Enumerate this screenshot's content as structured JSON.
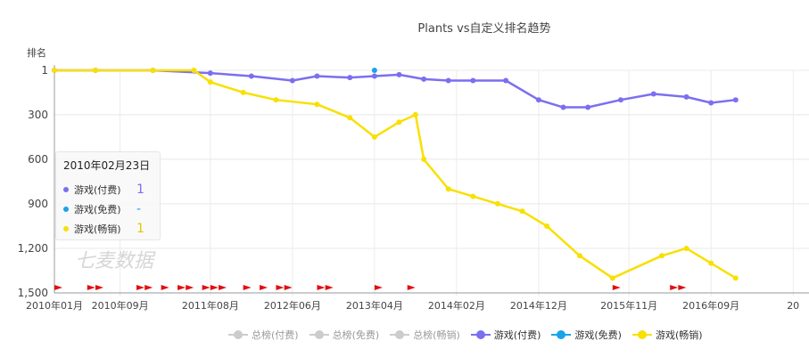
{
  "chart_data": {
    "type": "line",
    "title": "Plants vs自定义排名趋势",
    "ylabel": "排名",
    "y_inverted": true,
    "ylim": [
      1500,
      1
    ],
    "y_ticks": [
      "1",
      "300",
      "600",
      "900",
      "1,200",
      "1,500"
    ],
    "y_tick_values": [
      1,
      300,
      600,
      900,
      1200,
      1500
    ],
    "x_ticks": [
      "2010年01月",
      "2010年09月",
      "2011年08月",
      "2012年06月",
      "2013年04月",
      "2014年02月",
      "2014年12月",
      "2015年11月",
      "2016年09月",
      "20"
    ],
    "x_range": [
      "2010-01",
      "2017-06"
    ],
    "series": [
      {
        "name": "游戏(付费)",
        "color": "#7b6ff0",
        "x": [
          "2010-01",
          "2010-06",
          "2011-01",
          "2011-08",
          "2012-01",
          "2012-06",
          "2012-09",
          "2013-01",
          "2013-04",
          "2013-07",
          "2013-10",
          "2014-01",
          "2014-04",
          "2014-08",
          "2014-12",
          "2015-03",
          "2015-06",
          "2015-10",
          "2016-02",
          "2016-06",
          "2016-09",
          "2016-12"
        ],
        "values": [
          1,
          1,
          1,
          20,
          40,
          70,
          40,
          50,
          40,
          30,
          60,
          70,
          70,
          70,
          200,
          250,
          250,
          200,
          160,
          180,
          220,
          200
        ]
      },
      {
        "name": "游戏(免费)",
        "color": "#1aa3e8",
        "x": [
          "2013-04"
        ],
        "values": [
          1
        ]
      },
      {
        "name": "游戏(畅销)",
        "color": "#f8e000",
        "x": [
          "2010-01",
          "2010-06",
          "2011-01",
          "2011-06",
          "2011-08",
          "2011-12",
          "2012-04",
          "2012-09",
          "2013-01",
          "2013-04",
          "2013-07",
          "2013-09",
          "2013-10",
          "2014-01",
          "2014-04",
          "2014-07",
          "2014-10",
          "2015-01",
          "2015-05",
          "2015-09",
          "2016-03",
          "2016-06",
          "2016-09",
          "2016-12"
        ],
        "values": [
          1,
          1,
          1,
          1,
          80,
          150,
          200,
          230,
          320,
          450,
          350,
          300,
          600,
          800,
          850,
          900,
          950,
          1050,
          1250,
          1400,
          1250,
          1200,
          1300,
          1400
        ]
      }
    ],
    "flag_events": [
      "2010-01",
      "2010-05",
      "2010-06",
      "2010-11",
      "2010-12",
      "2011-02",
      "2011-04",
      "2011-05",
      "2011-07",
      "2011-08",
      "2011-09",
      "2011-12",
      "2012-02",
      "2012-04",
      "2012-05",
      "2012-09",
      "2012-10",
      "2013-04",
      "2013-08",
      "2015-09",
      "2016-04",
      "2016-05"
    ],
    "tooltip": {
      "date": "2010年02月23日",
      "rows": [
        {
          "name": "游戏(付费)",
          "color": "#7b6ff0",
          "value": "1",
          "value_color": "#7b6ff0"
        },
        {
          "name": "游戏(免费)",
          "color": "#1aa3e8",
          "value": "-",
          "value_color": "#1aa3e8"
        },
        {
          "name": "游戏(畅销)",
          "color": "#f8e000",
          "value": "1",
          "value_color": "#e0c800"
        }
      ]
    },
    "watermark": "七麦数据",
    "legend_position": "bottom",
    "legend": [
      {
        "name": "总榜(付费)",
        "color": "#cccccc",
        "active": false
      },
      {
        "name": "总榜(免费)",
        "color": "#cccccc",
        "active": false
      },
      {
        "name": "总榜(畅销)",
        "color": "#cccccc",
        "active": false
      },
      {
        "name": "游戏(付费)",
        "color": "#7b6ff0",
        "active": true
      },
      {
        "name": "游戏(免费)",
        "color": "#1aa3e8",
        "active": true
      },
      {
        "name": "游戏(畅销)",
        "color": "#f8e000",
        "active": true
      }
    ],
    "grid": true
  }
}
